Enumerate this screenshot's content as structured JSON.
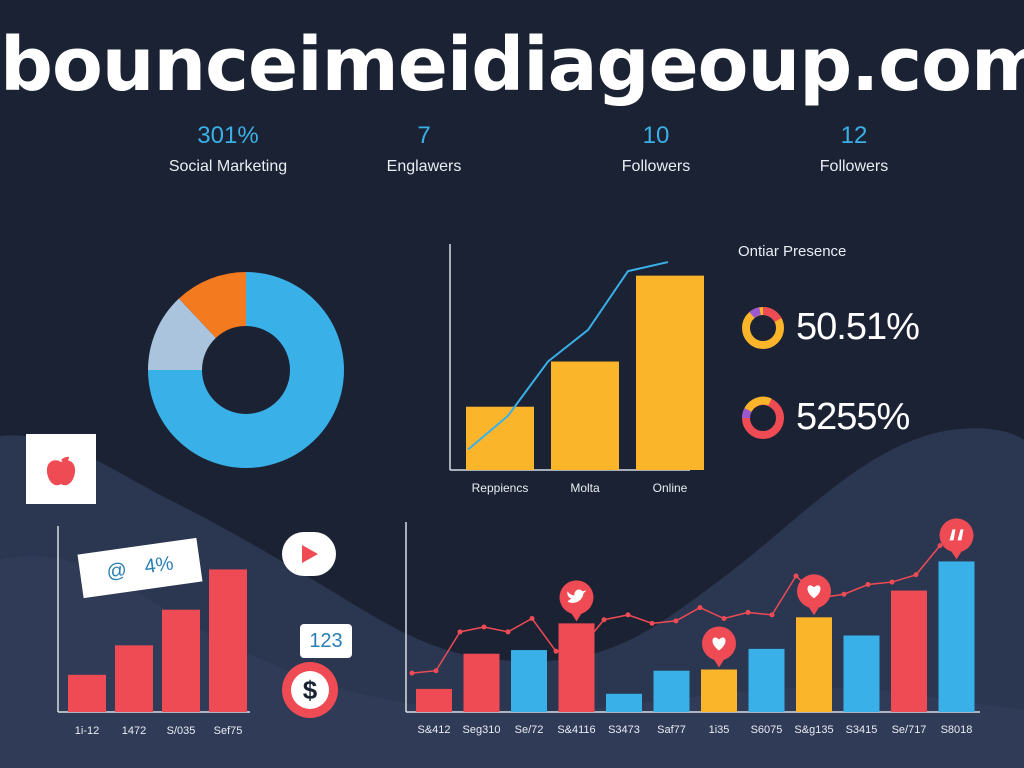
{
  "title": "bouncеimeidiageoup.com",
  "stats": [
    {
      "value": "301%",
      "label": "Social Marketing"
    },
    {
      "value": "7",
      "label": "Englawers"
    },
    {
      "value": "10",
      "label": "Followers"
    },
    {
      "value": "12",
      "label": "Followers"
    }
  ],
  "presence": {
    "title": "Ontiar Presence",
    "items": [
      {
        "value": "50.51%"
      },
      {
        "value": "5255%"
      }
    ]
  },
  "bubbles": {
    "percent": "4%",
    "count": "123"
  },
  "icons": {
    "dollar": "$"
  },
  "colors": {
    "blue": "#3ab0e8",
    "orange": "#f47a20",
    "lightblue": "#a9c4dc",
    "yellow": "#fbb52a",
    "red": "#ef4b55",
    "line": "#3ab0e8"
  },
  "chart_data": [
    {
      "type": "pie",
      "variant": "donut",
      "slices": [
        {
          "value": 75,
          "color": "#3ab0e8"
        },
        {
          "value": 13,
          "color": "#a9c4dc"
        },
        {
          "value": 12,
          "color": "#f47a20"
        }
      ]
    },
    {
      "type": "bar",
      "categories": [
        "Reppiencs",
        "Molta",
        "Online"
      ],
      "values": [
        28,
        48,
        86
      ],
      "ylim": [
        0,
        100
      ],
      "line": [
        9,
        24,
        48,
        62,
        88,
        92
      ]
    },
    {
      "type": "bar",
      "categories": [
        "1i-12",
        "1472",
        "S/035",
        "Sef75"
      ],
      "values": [
        24,
        43,
        66,
        92
      ],
      "ylim": [
        0,
        100
      ]
    },
    {
      "type": "bar",
      "categories": [
        "S&412",
        "Seg310",
        "Se/72",
        "S&4116",
        "S3473",
        "Saf77",
        "1i35",
        "S6075",
        "S&g135",
        "S3415",
        "Se/717",
        "S8018"
      ],
      "values": [
        19,
        48,
        51,
        73,
        15,
        34,
        35,
        52,
        78,
        63,
        100,
        124
      ],
      "colors": [
        "#ef4b55",
        "#ef4b55",
        "#3ab0e8",
        "#ef4b55",
        "#3ab0e8",
        "#3ab0e8",
        "#fbb52a",
        "#3ab0e8",
        "#fbb52a",
        "#3ab0e8",
        "#ef4b55",
        "#3ab0e8"
      ],
      "ylim": [
        0,
        140
      ],
      "line": [
        32,
        34,
        66,
        70,
        66,
        77,
        50,
        52,
        76,
        80,
        73,
        75,
        86,
        77,
        82,
        80,
        112,
        94,
        97,
        105,
        107,
        113,
        137
      ]
    }
  ]
}
